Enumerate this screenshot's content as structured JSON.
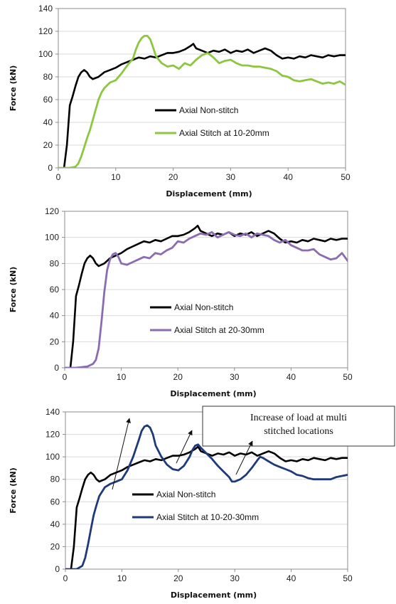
{
  "chart_data": [
    {
      "type": "line",
      "title": "",
      "xlabel": "Displacement (mm)",
      "ylabel": "Force (kN)",
      "xlim": [
        0,
        50
      ],
      "ylim": [
        0,
        140
      ],
      "xticks": [
        0,
        10,
        20,
        30,
        40,
        50
      ],
      "yticks": [
        0,
        20,
        40,
        60,
        80,
        100,
        120,
        140
      ],
      "grid": "horizontal",
      "legend_position": "center-right",
      "series": [
        {
          "name": "Axial Non-stitch",
          "color": "#000000",
          "x": [
            1,
            1.5,
            2,
            2.5,
            3,
            3.5,
            4,
            4.5,
            5,
            5.5,
            6,
            7,
            8,
            9,
            10,
            11,
            12,
            13,
            14,
            15,
            16,
            17,
            18,
            19,
            20,
            21,
            22,
            23,
            23.5,
            24,
            25,
            26,
            27,
            28,
            29,
            30,
            31,
            32,
            33,
            34,
            35,
            36,
            37,
            38,
            39,
            40,
            41,
            42,
            43,
            44,
            45,
            46,
            47,
            48,
            49,
            50
          ],
          "y": [
            0,
            20,
            55,
            63,
            72,
            80,
            84,
            86,
            84,
            80,
            78,
            80,
            84,
            86,
            88,
            91,
            93,
            95,
            97,
            96,
            98,
            97,
            99,
            101,
            101,
            102,
            104,
            107,
            109,
            105,
            103,
            101,
            103,
            102,
            104,
            101,
            103,
            102,
            104,
            101,
            103,
            105,
            103,
            99,
            96,
            97,
            96,
            98,
            97,
            99,
            98,
            97,
            99,
            98,
            99,
            99
          ]
        },
        {
          "name": "Axial Stitch at 10-20mm",
          "color": "#8dc63f",
          "x": [
            0,
            2,
            3,
            3.5,
            4,
            4.5,
            5,
            5.5,
            6,
            6.5,
            7,
            7.5,
            8,
            9,
            10,
            11,
            12,
            13,
            13.5,
            14,
            14.5,
            15,
            15.5,
            16,
            16.5,
            17,
            18,
            19,
            20,
            21,
            22,
            23,
            24,
            25,
            26,
            27,
            28,
            29,
            30,
            31,
            32,
            33,
            34,
            35,
            36,
            37,
            38,
            39,
            40,
            41,
            42,
            43,
            44,
            45,
            46,
            47,
            48,
            49,
            50
          ],
          "y": [
            0,
            0,
            1,
            4,
            10,
            18,
            26,
            33,
            42,
            51,
            60,
            66,
            70,
            75,
            77,
            83,
            90,
            96,
            104,
            110,
            114,
            116,
            116,
            113,
            106,
            98,
            92,
            89,
            90,
            87,
            92,
            90,
            95,
            99,
            101,
            97,
            92,
            94,
            95,
            92,
            90,
            90,
            89,
            89,
            88,
            87,
            85,
            81,
            80,
            77,
            76,
            77,
            78,
            76,
            74,
            75,
            74,
            76,
            73
          ]
        }
      ]
    },
    {
      "type": "line",
      "title": "",
      "xlabel": "Displacement (mm)",
      "ylabel": "Force (kN)",
      "xlim": [
        0,
        50
      ],
      "ylim": [
        0,
        120
      ],
      "xticks": [
        0,
        10,
        20,
        30,
        40,
        50
      ],
      "yticks": [
        0,
        20,
        40,
        60,
        80,
        100,
        120
      ],
      "grid": "horizontal",
      "legend_position": "center-right",
      "series": [
        {
          "name": "Axial Non-stitch",
          "color": "#000000",
          "x": [
            1,
            1.5,
            2,
            2.5,
            3,
            3.5,
            4,
            4.5,
            5,
            5.5,
            6,
            7,
            8,
            9,
            10,
            11,
            12,
            13,
            14,
            15,
            16,
            17,
            18,
            19,
            20,
            21,
            22,
            23,
            23.5,
            24,
            25,
            26,
            27,
            28,
            29,
            30,
            31,
            32,
            33,
            34,
            35,
            36,
            37,
            38,
            39,
            40,
            41,
            42,
            43,
            44,
            45,
            46,
            47,
            48,
            49,
            50
          ],
          "y": [
            0,
            20,
            55,
            63,
            72,
            80,
            84,
            86,
            84,
            80,
            78,
            80,
            84,
            86,
            88,
            91,
            93,
            95,
            97,
            96,
            98,
            97,
            99,
            101,
            101,
            102,
            104,
            107,
            109,
            105,
            103,
            101,
            103,
            102,
            104,
            101,
            103,
            102,
            104,
            101,
            103,
            105,
            103,
            99,
            96,
            97,
            96,
            98,
            97,
            99,
            98,
            97,
            99,
            98,
            99,
            99
          ]
        },
        {
          "name": "Axial Stitch at 20-30mm",
          "color": "#8b6bb1",
          "x": [
            0,
            2,
            4,
            5,
            5.5,
            6,
            6.5,
            7,
            7.5,
            8,
            8.5,
            9,
            9.5,
            10,
            11,
            12,
            13,
            14,
            15,
            16,
            17,
            18,
            19,
            20,
            21,
            22,
            23,
            24,
            25,
            26,
            27,
            28,
            29,
            30,
            31,
            32,
            33,
            34,
            35,
            36,
            37,
            38,
            39,
            40,
            41,
            42,
            43,
            44,
            45,
            46,
            47,
            48,
            49,
            50
          ],
          "y": [
            0,
            0,
            1,
            3,
            6,
            15,
            35,
            58,
            75,
            83,
            87,
            88,
            85,
            80,
            79,
            81,
            83,
            85,
            84,
            88,
            87,
            90,
            92,
            97,
            96,
            99,
            101,
            103,
            102,
            104,
            100,
            102,
            104,
            102,
            101,
            103,
            100,
            103,
            102,
            101,
            98,
            96,
            98,
            94,
            92,
            90,
            90,
            91,
            87,
            85,
            83,
            84,
            88,
            82
          ]
        }
      ]
    },
    {
      "type": "line",
      "title": "",
      "xlabel": "Displacement (mm)",
      "ylabel": "Force (kN)",
      "xlim": [
        0,
        50
      ],
      "ylim": [
        0,
        140
      ],
      "xticks": [
        0,
        10,
        20,
        30,
        40,
        50
      ],
      "yticks": [
        0,
        20,
        40,
        60,
        80,
        100,
        120,
        140
      ],
      "grid": "horizontal",
      "legend_position": "center-right",
      "annotation": {
        "text_lines": [
          "Increase of load at multi",
          "stitched locations"
        ],
        "arrows_to_x": [
          12,
          23,
          34
        ]
      },
      "series": [
        {
          "name": "Axial Non-stitch",
          "color": "#000000",
          "x": [
            1,
            1.5,
            2,
            2.5,
            3,
            3.5,
            4,
            4.5,
            5,
            5.5,
            6,
            7,
            8,
            9,
            10,
            11,
            12,
            13,
            14,
            15,
            16,
            17,
            18,
            19,
            20,
            21,
            22,
            23,
            23.5,
            24,
            25,
            26,
            27,
            28,
            29,
            30,
            31,
            32,
            33,
            34,
            35,
            36,
            37,
            38,
            39,
            40,
            41,
            42,
            43,
            44,
            45,
            46,
            47,
            48,
            49,
            50
          ],
          "y": [
            0,
            20,
            55,
            63,
            72,
            80,
            84,
            86,
            84,
            80,
            78,
            80,
            84,
            86,
            88,
            91,
            93,
            95,
            97,
            96,
            98,
            97,
            99,
            101,
            101,
            102,
            104,
            107,
            109,
            105,
            103,
            101,
            103,
            102,
            104,
            101,
            103,
            102,
            104,
            101,
            103,
            105,
            103,
            99,
            96,
            97,
            96,
            98,
            97,
            99,
            98,
            97,
            99,
            98,
            99,
            99
          ]
        },
        {
          "name": "Axial Stitch at 10-20-30mm",
          "color": "#1f3a7a",
          "x": [
            0,
            2,
            3,
            3.5,
            4,
            4.5,
            5,
            5.5,
            6,
            7,
            8,
            9,
            10,
            11,
            12,
            13,
            13.5,
            14,
            14.5,
            15,
            15.5,
            16,
            17,
            18,
            19,
            20,
            21,
            22,
            22.5,
            23,
            23.5,
            24,
            25,
            26,
            27,
            28,
            29,
            29.5,
            30,
            31,
            32,
            33,
            34,
            34.5,
            35,
            36,
            37,
            38,
            39,
            40,
            41,
            42,
            43,
            44,
            45,
            46,
            47,
            48,
            49,
            50
          ],
          "y": [
            0,
            0,
            3,
            10,
            22,
            35,
            48,
            57,
            65,
            73,
            76,
            78,
            80,
            88,
            100,
            115,
            123,
            127,
            128,
            126,
            120,
            110,
            100,
            93,
            89,
            88,
            92,
            100,
            106,
            110,
            111,
            108,
            103,
            98,
            92,
            87,
            82,
            78,
            78,
            80,
            84,
            90,
            97,
            100,
            99,
            96,
            93,
            91,
            89,
            87,
            84,
            83,
            81,
            80,
            80,
            80,
            80,
            82,
            83,
            84
          ]
        }
      ]
    }
  ]
}
